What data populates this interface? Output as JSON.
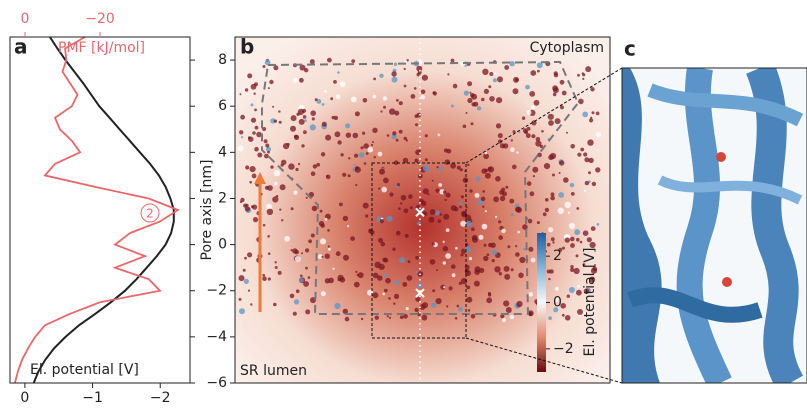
{
  "chart_data": [
    {
      "type": "line",
      "panel_label": "a",
      "y": [
        9,
        8.5,
        8,
        7.5,
        7,
        6.5,
        6,
        5.5,
        5,
        4.5,
        4,
        3.5,
        3,
        2.5,
        2,
        1.5,
        1,
        0.5,
        0,
        -0.5,
        -1,
        -1.5,
        -2,
        -2.5,
        -3,
        -3.5,
        -4,
        -4.5,
        -5,
        -5.5,
        -6
      ],
      "series": [
        {
          "name": "El. potential [V]",
          "color": "#222222",
          "axis": "x",
          "values": [
            -0.37,
            -0.48,
            -0.6,
            -0.73,
            -0.86,
            -0.98,
            -1.1,
            -1.25,
            -1.4,
            -1.55,
            -1.7,
            -1.85,
            -1.98,
            -2.08,
            -2.15,
            -2.2,
            -2.2,
            -2.16,
            -2.08,
            -1.95,
            -1.8,
            -1.65,
            -1.48,
            -1.27,
            -1.04,
            -0.8,
            -0.6,
            -0.43,
            -0.3,
            -0.2,
            -0.13
          ]
        },
        {
          "name": "PMF [kJ/mol]",
          "color": "#e8676a",
          "axis": "x2",
          "values": [
            -16,
            -10.7,
            -11,
            -10,
            -12,
            -14,
            -12.5,
            -8,
            -9.3,
            -12.5,
            -14.7,
            -8,
            -5.3,
            -18.7,
            -33,
            -40.8,
            -36,
            -28,
            -24,
            -32,
            -24,
            -33,
            -36,
            -20,
            -12,
            -5.3,
            -2.7,
            -0.8,
            0.8,
            1.9,
            2.7
          ]
        }
      ],
      "annotation": "2",
      "xlim": [
        0.22,
        -2.44
      ],
      "xticks": [
        0,
        {
          "value": -1,
          "label": "−1"
        },
        {
          "value": -2,
          "label": "−2"
        }
      ],
      "x2lim": [
        4,
        -44
      ],
      "x2ticks": [
        0,
        {
          "value": -20,
          "label": "−20"
        }
      ],
      "ylim": [
        -6,
        9
      ],
      "yticks": [
        -6,
        -4,
        -2,
        0,
        2,
        4,
        6,
        8
      ]
    },
    {
      "type": "heatmap",
      "panel_label": "b",
      "ylabel": "Pore axis [nm]",
      "ylim": [
        -6,
        9
      ],
      "yticks": [
        {
          "value": -6,
          "label": "−6"
        },
        {
          "value": -4,
          "label": "−4"
        },
        {
          "value": -2,
          "label": "−2"
        },
        0,
        2,
        4,
        6,
        8
      ],
      "top_label": "Cytoplasm",
      "bottom_label": "SR lumen",
      "markers_y": [
        1.4,
        -2.1
      ],
      "colorbar": {
        "label": "El. potential [V]",
        "lim": [
          -3,
          3
        ],
        "ticks": [
          {
            "value": -2,
            "label": "−2"
          },
          0,
          2
        ]
      }
    }
  ],
  "panel_c": {
    "label": "c"
  }
}
